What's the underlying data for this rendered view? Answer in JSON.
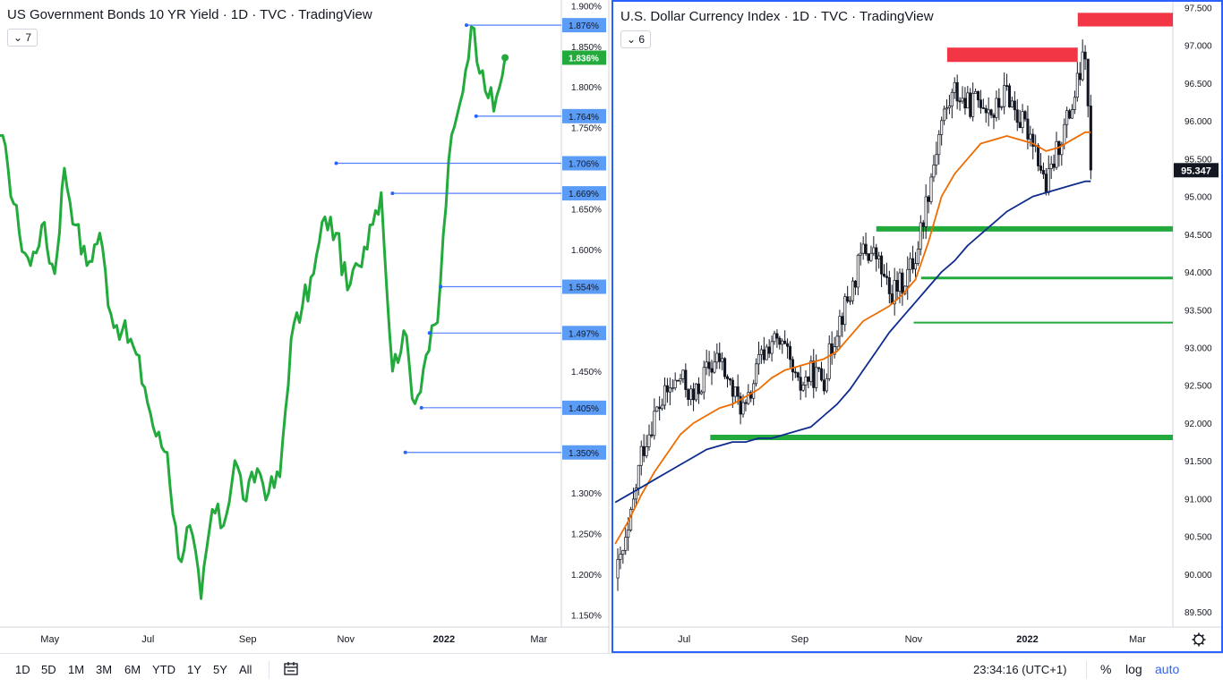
{
  "left_chart": {
    "title": "US Government Bonds 10 YR Yield · 1D · TVC · TradingView",
    "legend_toggle": "7",
    "last_value_label": "1.836%",
    "line_color": "#22ab3c"
  },
  "right_chart": {
    "title": "U.S. Dollar Currency Index · 1D · TVC · TradingView",
    "legend_toggle": "6",
    "last_value_label": "95.347"
  },
  "bottom_bar": {
    "ranges": [
      "1D",
      "5D",
      "1M",
      "3M",
      "6M",
      "YTD",
      "1Y",
      "5Y",
      "All"
    ],
    "time": "23:34:16 (UTC+1)",
    "percent": "%",
    "log": "log",
    "auto": "auto",
    "icons": [
      "calendar-range-icon",
      "chevron-down-icon",
      "gear-icon"
    ]
  },
  "chart_data": [
    {
      "type": "line",
      "title": "US Government Bonds 10 YR Yield · 1D · TVC · TradingView",
      "x_ticks": [
        "May",
        "Jul",
        "Sep",
        "Nov",
        "2022",
        "Mar"
      ],
      "y_ticks": [
        "1.900%",
        "1.850%",
        "1.800%",
        "1.750%",
        "1.650%",
        "1.600%",
        "1.450%",
        "1.300%",
        "1.250%",
        "1.200%",
        "1.150%"
      ],
      "y_tick_values": [
        1.9,
        1.85,
        1.8,
        1.75,
        1.65,
        1.6,
        1.45,
        1.3,
        1.25,
        1.2,
        1.15
      ],
      "ylim": [
        1.135,
        1.907
      ],
      "x_dates": [
        "2021-03-31",
        "2021-04-05",
        "2021-04-12",
        "2021-04-19",
        "2021-04-26",
        "2021-05-04",
        "2021-05-10",
        "2021-05-17",
        "2021-05-24",
        "2021-06-01",
        "2021-06-08",
        "2021-06-15",
        "2021-06-22",
        "2021-06-29",
        "2021-07-06",
        "2021-07-13",
        "2021-07-20",
        "2021-07-27",
        "2021-08-03",
        "2021-08-10",
        "2021-08-17",
        "2021-08-24",
        "2021-08-31",
        "2021-09-07",
        "2021-09-14",
        "2021-09-21",
        "2021-09-28",
        "2021-10-05",
        "2021-10-12",
        "2021-10-19",
        "2021-10-26",
        "2021-11-02",
        "2021-11-09",
        "2021-11-16",
        "2021-11-23",
        "2021-11-30",
        "2021-12-07",
        "2021-12-14",
        "2021-12-21",
        "2021-12-28",
        "2022-01-04",
        "2022-01-11",
        "2022-01-18",
        "2022-01-25",
        "2022-02-01",
        "2022-02-08"
      ],
      "series": [
        {
          "values": [
            1.74,
            1.7,
            1.62,
            1.58,
            1.63,
            1.57,
            1.7,
            1.63,
            1.58,
            1.62,
            1.52,
            1.5,
            1.48,
            1.43,
            1.37,
            1.35,
            1.22,
            1.26,
            1.17,
            1.28,
            1.26,
            1.34,
            1.29,
            1.33,
            1.3,
            1.32,
            1.49,
            1.53,
            1.57,
            1.64,
            1.62,
            1.55,
            1.58,
            1.63,
            1.67,
            1.45,
            1.5,
            1.41,
            1.47,
            1.51,
            1.71,
            1.78,
            1.874,
            1.82,
            1.77,
            1.836
          ]
        }
      ],
      "price_lines": [
        1.876,
        1.764,
        1.706,
        1.669,
        1.554,
        1.497,
        1.405,
        1.35
      ],
      "price_line_labels": [
        "1.876%",
        "1.764%",
        "1.706%",
        "1.669%",
        "1.554%",
        "1.497%",
        "1.405%",
        "1.350%"
      ],
      "last_value": 1.836,
      "grid": false
    },
    {
      "type": "candlestick",
      "title": "U.S. Dollar Currency Index · 1D · TVC · TradingView",
      "x_ticks": [
        "Jul",
        "Sep",
        "Nov",
        "2022",
        "Mar"
      ],
      "y_ticks": [
        "97.500",
        "97.000",
        "96.500",
        "96.000",
        "95.500",
        "95.000",
        "94.500",
        "94.000",
        "93.500",
        "93.000",
        "92.500",
        "92.000",
        "91.500",
        "91.000",
        "90.500",
        "90.000",
        "89.500"
      ],
      "ylim": [
        89.3,
        97.6
      ],
      "x_dates": [
        "2021-05-25",
        "2021-06-01",
        "2021-06-08",
        "2021-06-15",
        "2021-06-22",
        "2021-06-29",
        "2021-07-06",
        "2021-07-13",
        "2021-07-20",
        "2021-07-27",
        "2021-08-03",
        "2021-08-10",
        "2021-08-17",
        "2021-08-24",
        "2021-08-31",
        "2021-09-07",
        "2021-09-14",
        "2021-09-21",
        "2021-09-28",
        "2021-10-05",
        "2021-10-12",
        "2021-10-19",
        "2021-10-26",
        "2021-11-02",
        "2021-11-09",
        "2021-11-16",
        "2021-11-23",
        "2021-11-30",
        "2021-12-07",
        "2021-12-14",
        "2021-12-21",
        "2021-12-28",
        "2022-01-04",
        "2022-01-11",
        "2022-01-18",
        "2022-01-25",
        "2022-02-01",
        "2022-02-04"
      ],
      "close": [
        89.95,
        90.5,
        91.6,
        92.1,
        92.4,
        92.6,
        92.3,
        92.7,
        92.85,
        92.4,
        92.15,
        92.8,
        93.1,
        92.95,
        92.45,
        92.65,
        92.6,
        93.3,
        93.7,
        94.3,
        94.2,
        93.7,
        93.85,
        94.2,
        95.1,
        96.0,
        96.4,
        96.2,
        96.3,
        96.1,
        96.4,
        96.0,
        95.8,
        95.1,
        95.7,
        96.2,
        96.9,
        95.35
      ],
      "moving_averages": [
        {
          "color": "#ef6c00",
          "values": [
            90.4,
            90.7,
            91.05,
            91.35,
            91.6,
            91.85,
            92.0,
            92.1,
            92.2,
            92.25,
            92.35,
            92.45,
            92.6,
            92.7,
            92.75,
            92.8,
            92.85,
            92.95,
            93.15,
            93.35,
            93.45,
            93.55,
            93.7,
            93.9,
            94.4,
            95.0,
            95.3,
            95.5,
            95.7,
            95.75,
            95.8,
            95.75,
            95.7,
            95.6,
            95.65,
            95.75,
            95.85,
            95.85
          ]
        },
        {
          "color": "#0d2c8c",
          "values": [
            90.95,
            91.05,
            91.15,
            91.25,
            91.35,
            91.45,
            91.55,
            91.65,
            91.7,
            91.75,
            91.75,
            91.8,
            91.8,
            91.85,
            91.9,
            91.95,
            92.1,
            92.25,
            92.45,
            92.7,
            92.95,
            93.2,
            93.4,
            93.6,
            93.8,
            94.0,
            94.15,
            94.35,
            94.5,
            94.65,
            94.8,
            94.9,
            95.0,
            95.05,
            95.1,
            95.15,
            95.2,
            95.2
          ]
        }
      ],
      "horizontal_levels": [
        {
          "value": 94.57,
          "color": "#22ab3c"
        },
        {
          "value": 93.92,
          "color": "#22ab3c"
        },
        {
          "value": 93.33,
          "color": "#22ab3c"
        },
        {
          "value": 91.81,
          "color": "#22ab3c"
        }
      ],
      "resistance_zones": [
        {
          "from": 96.78,
          "to": 96.97,
          "color": "#f23645"
        },
        {
          "from": 97.25,
          "to": 97.43,
          "color": "#f23645"
        }
      ],
      "last_value": 95.347,
      "grid": false
    }
  ]
}
